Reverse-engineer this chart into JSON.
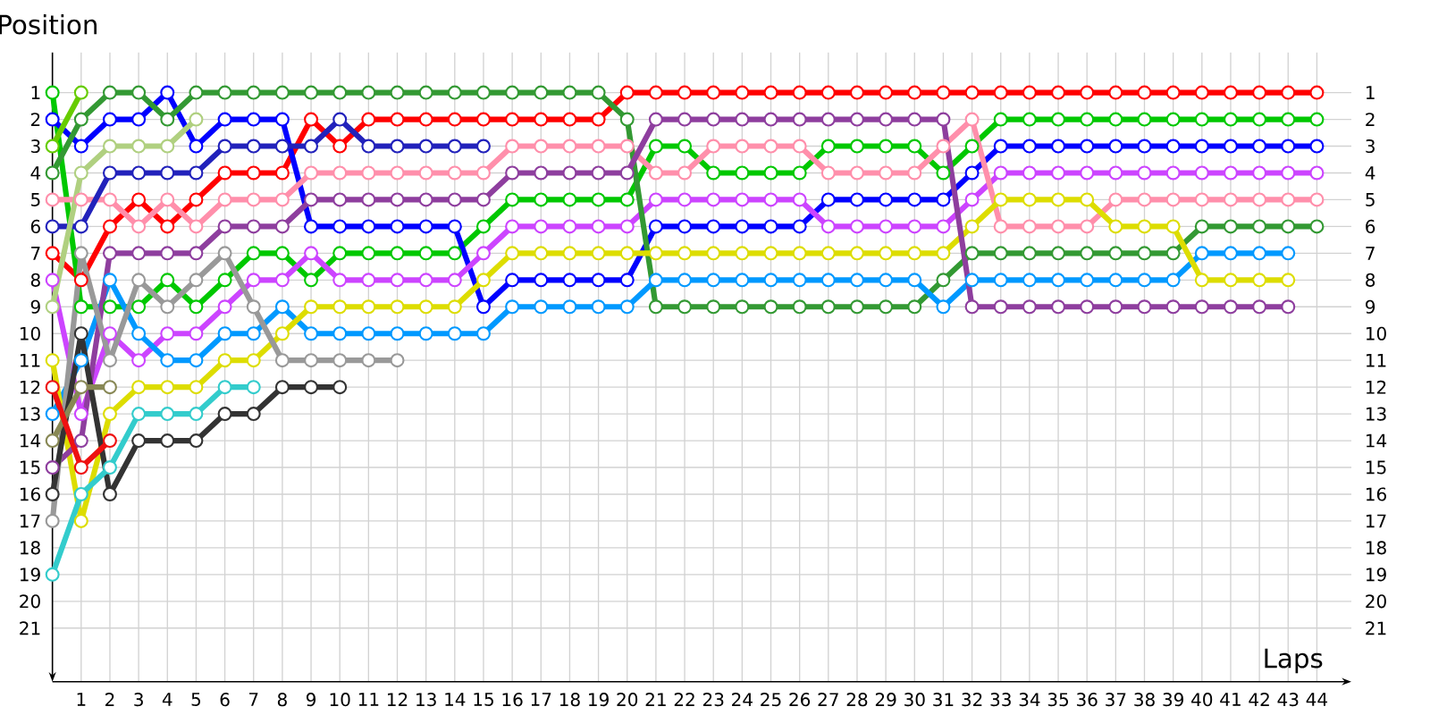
{
  "chart_data": {
    "type": "line",
    "xlabel": "Laps",
    "ylabel": "Position",
    "marker": "circle",
    "line_style": "solid",
    "grid": true,
    "x": [
      0,
      1,
      2,
      3,
      4,
      5,
      6,
      7,
      8,
      9,
      10,
      11,
      12,
      13,
      14,
      15,
      16,
      17,
      18,
      19,
      20,
      21,
      22,
      23,
      24,
      25,
      26,
      27,
      28,
      29,
      30,
      31,
      32,
      33,
      34,
      35,
      36,
      37,
      38,
      39,
      40,
      41,
      42,
      43,
      44
    ],
    "xlim": [
      0,
      45.2
    ],
    "ylim": [
      23,
      -0.5
    ],
    "y2lim": [
      23,
      -0.5
    ],
    "xticks": [
      1,
      2,
      3,
      4,
      5,
      6,
      7,
      8,
      9,
      10,
      11,
      12,
      13,
      14,
      15,
      16,
      17,
      18,
      19,
      20,
      21,
      22,
      23,
      24,
      25,
      26,
      27,
      28,
      29,
      30,
      31,
      32,
      33,
      34,
      35,
      36,
      37,
      38,
      39,
      40,
      41,
      42,
      43,
      44
    ],
    "yticks": [
      1,
      2,
      3,
      4,
      5,
      6,
      7,
      8,
      9,
      10,
      11,
      12,
      13,
      14,
      15,
      16,
      17,
      18,
      19,
      20,
      21
    ],
    "y2ticks": [
      1,
      2,
      3,
      4,
      5,
      6,
      7,
      8,
      9,
      10,
      11,
      12,
      13,
      14,
      15,
      16,
      17,
      18,
      19,
      20,
      21
    ],
    "series": [
      {
        "color": "#ff0000",
        "values": [
          7,
          8,
          6,
          5,
          6,
          5,
          4,
          4,
          4,
          2,
          3,
          2,
          2,
          2,
          2,
          2,
          2,
          2,
          2,
          2,
          1,
          1,
          1,
          1,
          1,
          1,
          1,
          1,
          1,
          1,
          1,
          1,
          1,
          1,
          1,
          1,
          1,
          1,
          1,
          1,
          1,
          1,
          1,
          1,
          1
        ]
      },
      {
        "color": "#00c800",
        "values": [
          1,
          9,
          9,
          9,
          8,
          9,
          8,
          7,
          7,
          8,
          7,
          7,
          7,
          7,
          7,
          6,
          5,
          5,
          5,
          5,
          5,
          3,
          3,
          4,
          4,
          4,
          4,
          3,
          3,
          3,
          3,
          4,
          3,
          2,
          2,
          2,
          2,
          2,
          2,
          2,
          2,
          2,
          2,
          2,
          2
        ]
      },
      {
        "color": "#0000ff",
        "values": [
          2,
          3,
          2,
          2,
          1,
          3,
          2,
          2,
          2,
          6,
          6,
          6,
          6,
          6,
          6,
          9,
          8,
          8,
          8,
          8,
          8,
          6,
          6,
          6,
          6,
          6,
          6,
          5,
          5,
          5,
          5,
          5,
          4,
          3,
          3,
          3,
          3,
          3,
          3,
          3,
          3,
          3,
          3,
          3,
          3
        ]
      },
      {
        "color": "#cc44ff",
        "values": [
          8,
          13,
          10,
          11,
          10,
          10,
          9,
          8,
          8,
          7,
          8,
          8,
          8,
          8,
          8,
          7,
          6,
          6,
          6,
          6,
          6,
          5,
          5,
          5,
          5,
          5,
          5,
          6,
          6,
          6,
          6,
          6,
          5,
          4,
          4,
          4,
          4,
          4,
          4,
          4,
          4,
          4,
          4,
          4,
          4
        ]
      },
      {
        "color": "#ff8fab",
        "values": [
          5,
          5,
          5,
          6,
          5,
          6,
          5,
          5,
          5,
          4,
          4,
          4,
          4,
          4,
          4,
          4,
          3,
          3,
          3,
          3,
          3,
          4,
          4,
          3,
          3,
          3,
          3,
          4,
          4,
          4,
          4,
          3,
          2,
          6,
          6,
          6,
          6,
          5,
          5,
          5,
          5,
          5,
          5,
          5,
          5
        ]
      },
      {
        "color": "#339933",
        "values": [
          4,
          2,
          1,
          1,
          2,
          1,
          1,
          1,
          1,
          1,
          1,
          1,
          1,
          1,
          1,
          1,
          1,
          1,
          1,
          1,
          2,
          9,
          9,
          9,
          9,
          9,
          9,
          9,
          9,
          9,
          9,
          8,
          7,
          7,
          7,
          7,
          7,
          7,
          7,
          7,
          6,
          6,
          6,
          6,
          6
        ]
      },
      {
        "color": "#0099ff",
        "values": [
          13,
          11,
          8,
          10,
          11,
          11,
          10,
          10,
          9,
          10,
          10,
          10,
          10,
          10,
          10,
          10,
          9,
          9,
          9,
          9,
          9,
          8,
          8,
          8,
          8,
          8,
          8,
          8,
          8,
          8,
          8,
          9,
          8,
          8,
          8,
          8,
          8,
          8,
          8,
          8,
          7,
          7,
          7,
          7,
          null
        ]
      },
      {
        "color": "#dddd00",
        "values": [
          11,
          17,
          13,
          12,
          12,
          12,
          11,
          11,
          10,
          9,
          9,
          9,
          9,
          9,
          9,
          8,
          7,
          7,
          7,
          7,
          7,
          7,
          7,
          7,
          7,
          7,
          7,
          7,
          7,
          7,
          7,
          7,
          6,
          5,
          5,
          5,
          5,
          6,
          6,
          6,
          8,
          8,
          8,
          8,
          null
        ]
      },
      {
        "color": "#8e3e9e",
        "values": [
          15,
          14,
          7,
          7,
          7,
          7,
          6,
          6,
          6,
          5,
          5,
          5,
          5,
          5,
          5,
          5,
          4,
          4,
          4,
          4,
          4,
          2,
          2,
          2,
          2,
          2,
          2,
          2,
          2,
          2,
          2,
          2,
          9,
          9,
          9,
          9,
          9,
          9,
          9,
          9,
          9,
          9,
          9,
          9,
          null
        ]
      },
      {
        "color": "#999999",
        "x": [
          0,
          1,
          2,
          3,
          4,
          5,
          6,
          7,
          8,
          9,
          10,
          11,
          12
        ],
        "values": [
          17,
          7,
          11,
          8,
          9,
          8,
          7,
          9,
          11,
          11,
          11,
          11,
          11
        ]
      },
      {
        "color": "#2222bb",
        "x": [
          0,
          1,
          2,
          3,
          4,
          5,
          6,
          7,
          8,
          9,
          10,
          11,
          12,
          13,
          14,
          15
        ],
        "values": [
          6,
          6,
          4,
          4,
          4,
          4,
          3,
          3,
          3,
          3,
          2,
          3,
          3,
          3,
          3,
          3
        ]
      },
      {
        "color": "#b0d080",
        "x": [
          0,
          1,
          2,
          3,
          4,
          5
        ],
        "values": [
          9,
          4,
          3,
          3,
          3,
          2
        ]
      },
      {
        "color": "#333333",
        "x": [
          0,
          1,
          2,
          3,
          4,
          5,
          6,
          7,
          8,
          9,
          10
        ],
        "values": [
          16,
          10,
          16,
          14,
          14,
          14,
          13,
          13,
          12,
          12,
          12
        ]
      },
      {
        "color": "#33cccc",
        "x": [
          0,
          1,
          2,
          3,
          4,
          5,
          6,
          7
        ],
        "values": [
          19,
          16,
          15,
          13,
          13,
          13,
          12,
          12
        ]
      },
      {
        "color": "#888855",
        "x": [
          0,
          1,
          2
        ],
        "values": [
          14,
          12,
          12
        ]
      },
      {
        "color": "#ee1111",
        "x": [
          0,
          1,
          2
        ],
        "values": [
          12,
          15,
          14
        ]
      },
      {
        "color": "#66cc00",
        "x": [
          0,
          1
        ],
        "values": [
          3,
          1
        ]
      }
    ]
  }
}
